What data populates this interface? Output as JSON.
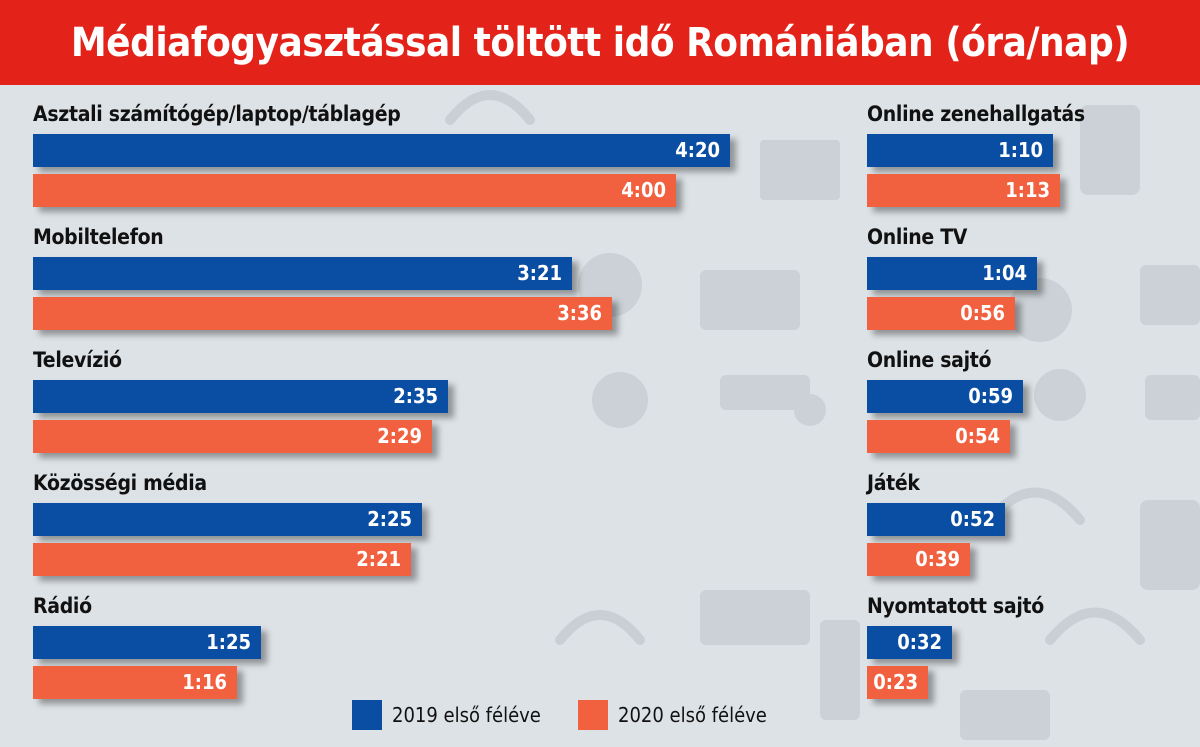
{
  "title": "Médiafogyasztással töltött idő Romániában (óra/nap)",
  "colors": {
    "header": "#e32219",
    "series_2019": "#0a4ea3",
    "series_2020": "#f2613f"
  },
  "legend": [
    {
      "label": "2019 első féléve",
      "color": "#0a4ea3"
    },
    {
      "label": "2020 első féléve",
      "color": "#f2613f"
    }
  ],
  "chart_data": {
    "type": "bar",
    "orientation": "horizontal",
    "title": "Médiafogyasztással töltött idő Romániában (óra/nap)",
    "unit": "óra/nap",
    "series": [
      {
        "name": "2019 első féléve",
        "color": "#0a4ea3"
      },
      {
        "name": "2020 első féléve",
        "color": "#f2613f"
      }
    ],
    "panels": [
      {
        "categories": [
          {
            "label": "Asztali számítógép/laptop/táblagép",
            "values": [
              "4:20",
              "4:00"
            ],
            "minutes": [
              260,
              240
            ]
          },
          {
            "label": "Mobiltelefon",
            "values": [
              "3:21",
              "3:36"
            ],
            "minutes": [
              201,
              216
            ]
          },
          {
            "label": "Televízió",
            "values": [
              "2:35",
              "2:29"
            ],
            "minutes": [
              155,
              149
            ]
          },
          {
            "label": "Közösségi média",
            "values": [
              "2:25",
              "2:21"
            ],
            "minutes": [
              145,
              141
            ]
          },
          {
            "label": "Rádió",
            "values": [
              "1:25",
              "1:16"
            ],
            "minutes": [
              85,
              76
            ]
          }
        ]
      },
      {
        "categories": [
          {
            "label": "Online zenehallgatás",
            "values": [
              "1:10",
              "1:13"
            ],
            "minutes": [
              70,
              73
            ]
          },
          {
            "label": "Online TV",
            "values": [
              "1:04",
              "0:56"
            ],
            "minutes": [
              64,
              56
            ]
          },
          {
            "label": "Online sajtó",
            "values": [
              "0:59",
              "0:54"
            ],
            "minutes": [
              59,
              54
            ]
          },
          {
            "label": "Játék",
            "values": [
              "0:52",
              "0:39"
            ],
            "minutes": [
              52,
              39
            ]
          },
          {
            "label": "Nyomtatott sajtó",
            "values": [
              "0:32",
              "0:23"
            ],
            "minutes": [
              32,
              23
            ]
          }
        ]
      }
    ]
  }
}
